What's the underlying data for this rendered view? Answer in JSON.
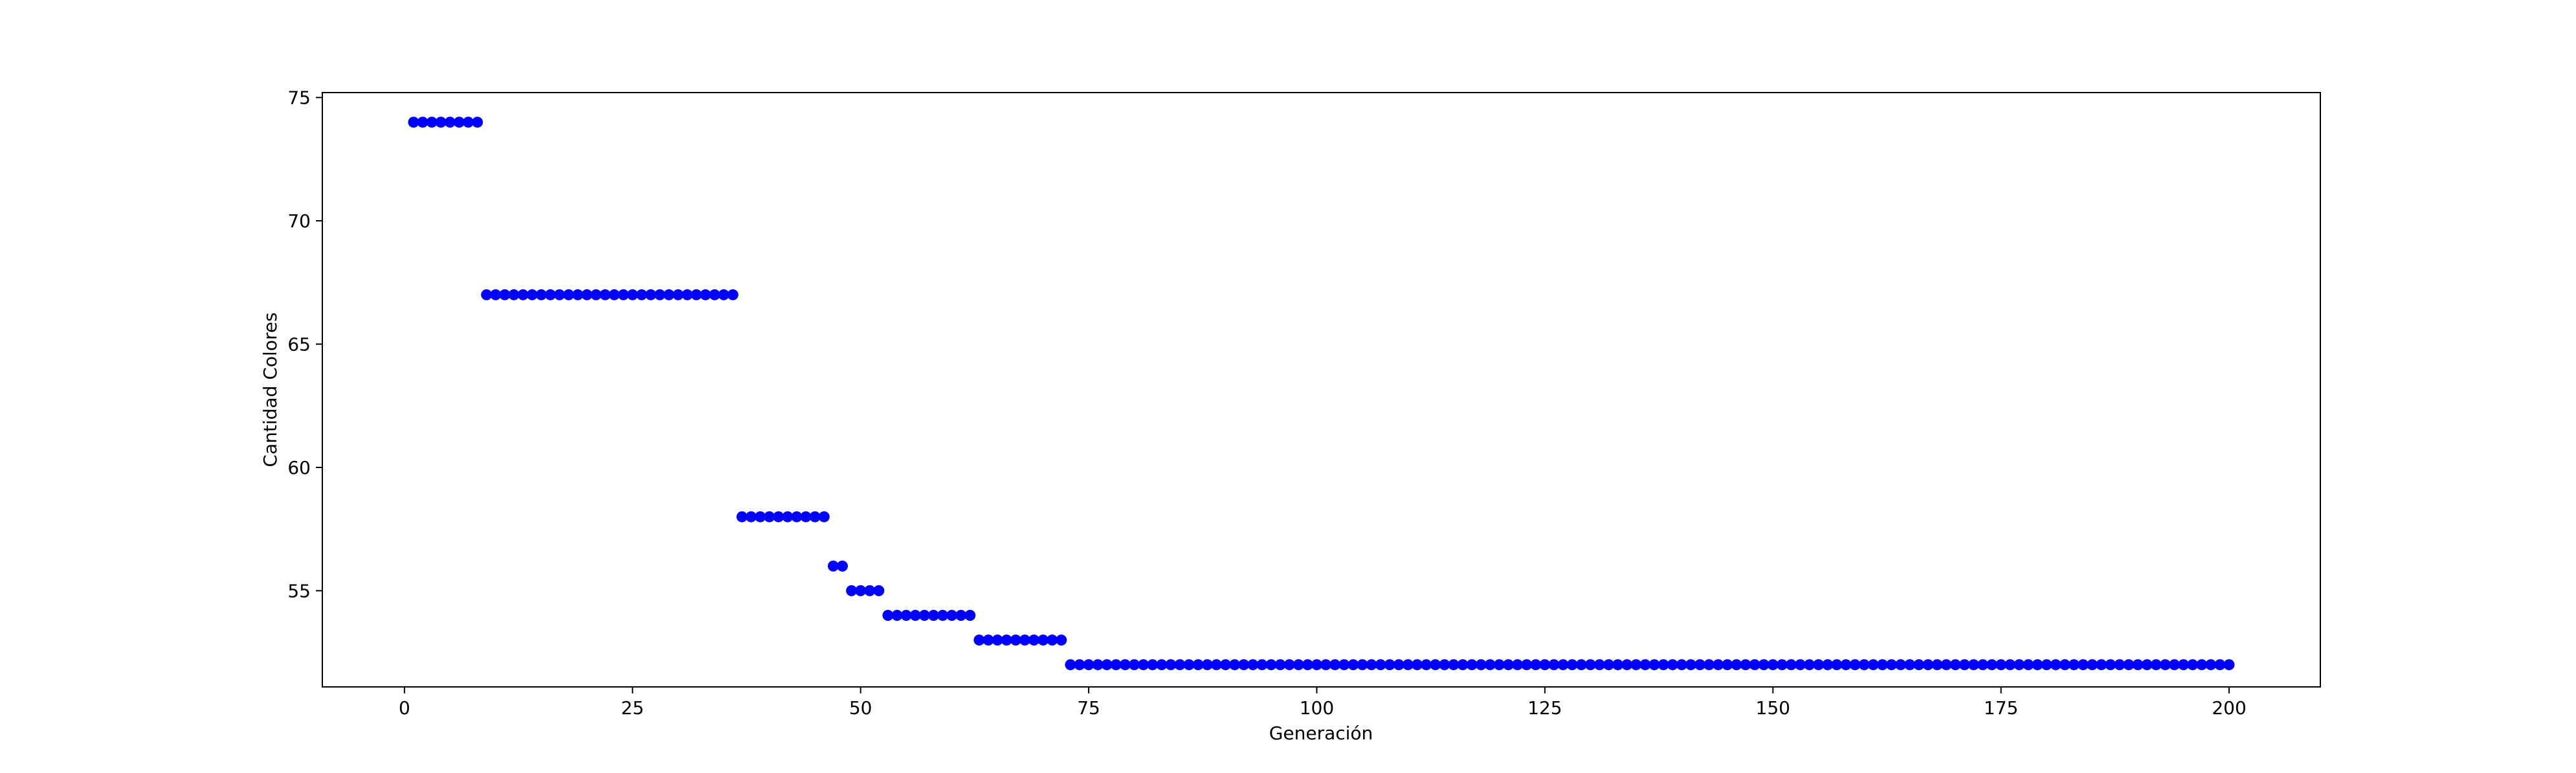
{
  "chart_data": {
    "type": "scatter",
    "title": "",
    "xlabel": "Generación",
    "ylabel": "Cantidad Colores",
    "xlim": [
      -9,
      210
    ],
    "ylim": [
      51.1,
      75.2
    ],
    "xticks": [
      0,
      25,
      50,
      75,
      100,
      125,
      150,
      175,
      200
    ],
    "yticks": [
      55,
      60,
      65,
      70,
      75
    ],
    "grid": false,
    "legend": "none",
    "marker_color": "#0000ff",
    "series": [
      {
        "segments": [
          {
            "x_from": 1,
            "x_to": 8,
            "y": 74
          },
          {
            "x_from": 9,
            "x_to": 36,
            "y": 67
          },
          {
            "x_from": 37,
            "x_to": 46,
            "y": 58
          },
          {
            "x_from": 47,
            "x_to": 48,
            "y": 56
          },
          {
            "x_from": 49,
            "x_to": 52,
            "y": 55
          },
          {
            "x_from": 53,
            "x_to": 62,
            "y": 54
          },
          {
            "x_from": 63,
            "x_to": 72,
            "y": 53
          },
          {
            "x_from": 73,
            "x_to": 200,
            "y": 52
          }
        ]
      }
    ]
  }
}
